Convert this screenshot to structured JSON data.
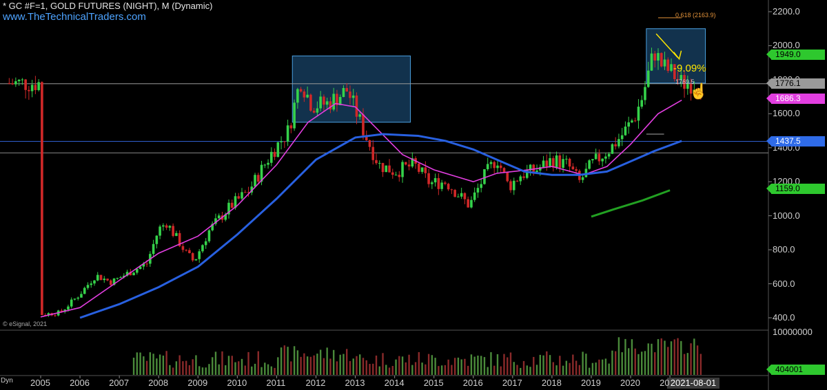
{
  "header": {
    "title": "* GC #F=1, GOLD FUTURES (NIGHT), M (Dynamic)",
    "website": "www.TheTechnicalTraders.com"
  },
  "chart_data": {
    "type": "candlestick",
    "title": "* GC #F=1, GOLD FUTURES (NIGHT), M (Dynamic)",
    "x_labels": [
      "2005",
      "2006",
      "2007",
      "2008",
      "2009",
      "2010",
      "2011",
      "2012",
      "2013",
      "2014",
      "2015",
      "2016",
      "2017",
      "2018",
      "2019",
      "2020",
      "20"
    ],
    "y_ticks": [
      "2200.0",
      "2000.0",
      "1800.0",
      "1600.0",
      "1400.0",
      "1200.0",
      "1000.0",
      "800.0",
      "600.0",
      "400.0"
    ],
    "ylim": [
      340,
      2260
    ],
    "price_path": [
      [
        2005.0,
        420
      ],
      [
        2005.5,
        430
      ],
      [
        2006.0,
        540
      ],
      [
        2006.4,
        650
      ],
      [
        2006.8,
        610
      ],
      [
        2007.2,
        660
      ],
      [
        2007.7,
        720
      ],
      [
        2008.0,
        920
      ],
      [
        2008.2,
        960
      ],
      [
        2008.7,
        780
      ],
      [
        2008.9,
        730
      ],
      [
        2009.3,
        920
      ],
      [
        2009.8,
        1050
      ],
      [
        2010.3,
        1150
      ],
      [
        2010.9,
        1380
      ],
      [
        2011.3,
        1500
      ],
      [
        2011.6,
        1800
      ],
      [
        2011.9,
        1650
      ],
      [
        2012.3,
        1660
      ],
      [
        2012.8,
        1740
      ],
      [
        2013.3,
        1450
      ],
      [
        2013.6,
        1300
      ],
      [
        2014.0,
        1260
      ],
      [
        2014.5,
        1300
      ],
      [
        2014.9,
        1190
      ],
      [
        2015.3,
        1200
      ],
      [
        2015.9,
        1060
      ],
      [
        2016.3,
        1240
      ],
      [
        2016.6,
        1340
      ],
      [
        2016.9,
        1170
      ],
      [
        2017.2,
        1240
      ],
      [
        2017.6,
        1270
      ],
      [
        2018.0,
        1330
      ],
      [
        2018.4,
        1300
      ],
      [
        2018.7,
        1200
      ],
      [
        2019.0,
        1300
      ],
      [
        2019.5,
        1400
      ],
      [
        2019.8,
        1480
      ],
      [
        2020.1,
        1580
      ],
      [
        2020.3,
        1700
      ],
      [
        2020.6,
        1970
      ],
      [
        2020.8,
        1880
      ],
      [
        2021.0,
        1850
      ],
      [
        2021.3,
        1780
      ],
      [
        2021.6,
        1780
      ]
    ],
    "series": [
      {
        "name": "",
        "color": "#e23ee0",
        "points": [
          [
            2005.0,
            405
          ],
          [
            2006.0,
            460
          ],
          [
            2007.0,
            620
          ],
          [
            2008.0,
            780
          ],
          [
            2009.0,
            880
          ],
          [
            2010.0,
            1060
          ],
          [
            2011.0,
            1300
          ],
          [
            2011.8,
            1550
          ],
          [
            2012.5,
            1660
          ],
          [
            2013.0,
            1640
          ],
          [
            2013.6,
            1500
          ],
          [
            2014.2,
            1360
          ],
          [
            2015.0,
            1270
          ],
          [
            2016.0,
            1200
          ],
          [
            2016.6,
            1250
          ],
          [
            2017.4,
            1270
          ],
          [
            2018.0,
            1290
          ],
          [
            2018.8,
            1240
          ],
          [
            2019.4,
            1290
          ],
          [
            2020.0,
            1420
          ],
          [
            2020.7,
            1600
          ],
          [
            2021.3,
            1680
          ]
        ]
      },
      {
        "name": "",
        "color": "#2860e0",
        "points": [
          [
            2006.0,
            400
          ],
          [
            2007.0,
            480
          ],
          [
            2008.0,
            580
          ],
          [
            2009.0,
            700
          ],
          [
            2010.0,
            890
          ],
          [
            2011.0,
            1100
          ],
          [
            2012.0,
            1330
          ],
          [
            2013.0,
            1460
          ],
          [
            2013.7,
            1480
          ],
          [
            2014.6,
            1470
          ],
          [
            2015.3,
            1440
          ],
          [
            2016.0,
            1390
          ],
          [
            2016.7,
            1320
          ],
          [
            2017.3,
            1260
          ],
          [
            2018.0,
            1240
          ],
          [
            2018.7,
            1240
          ],
          [
            2019.4,
            1260
          ],
          [
            2020.0,
            1320
          ],
          [
            2020.6,
            1380
          ],
          [
            2021.3,
            1440
          ]
        ]
      },
      {
        "name": "",
        "color": "#22a022",
        "points": [
          [
            2019.0,
            995
          ],
          [
            2019.6,
            1040
          ],
          [
            2020.3,
            1090
          ],
          [
            2021.0,
            1150
          ]
        ]
      }
    ],
    "horizontal_lines": [
      {
        "value": 1437.5,
        "color": "#2f5fd0"
      },
      {
        "value": 1370,
        "color": "#8a8a8a"
      },
      {
        "value": 1776.1,
        "color": "#9a9a9a"
      }
    ],
    "boxes": [
      {
        "x": [
          2011.4,
          2014.4
        ],
        "y": [
          1550,
          1940
        ]
      },
      {
        "x": [
          2020.4,
          2021.9
        ],
        "y": [
          1780,
          2100
        ]
      }
    ],
    "price_labels": [
      {
        "value": 1949.0,
        "text": "1949.0",
        "color": "#2ec82e"
      },
      {
        "value": 1776.1,
        "text": "1776.1",
        "color": "#9a9a9a"
      },
      {
        "value": 1686.3,
        "text": "1686.3",
        "color": "#e23ee0"
      },
      {
        "value": 1437.5,
        "text": "1437.5",
        "color": "#2f6be8"
      },
      {
        "value": 1159.0,
        "text": "1159.0",
        "color": "#2ec82e"
      }
    ],
    "annotations": {
      "percent_drop": "-9.09%",
      "fib_label": "0.618 (2163.9)",
      "small_price": "1769.5",
      "volume_high": "10000000",
      "volume_last": "404001",
      "date_box": "2021-08-01",
      "dyn": "Dyn",
      "copyright": "© eSignal, 2021"
    }
  }
}
